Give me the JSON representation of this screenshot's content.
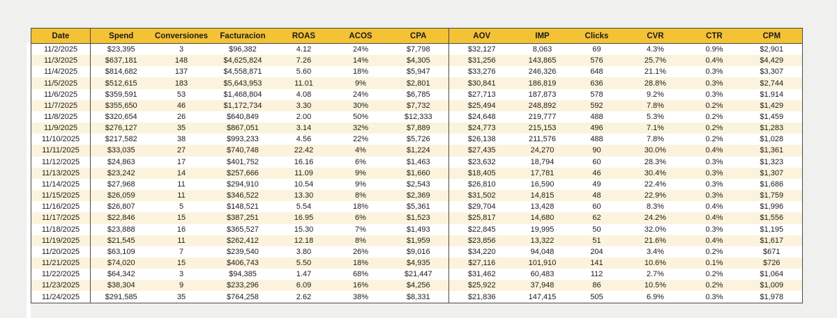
{
  "page": {
    "background_color": "#f0f0ee"
  },
  "table": {
    "header_bg_color": "#f3c235",
    "stripe_bg_color": "#fcf3dc",
    "border_color": "#4a4a4a",
    "columns": [
      "Date",
      "Spend",
      "Conversiones",
      "Facturacion",
      "ROAS",
      "ACOS",
      "CPA",
      "AOV",
      "IMP",
      "Clicks",
      "CVR",
      "CTR",
      "CPM"
    ],
    "rows": [
      [
        "11/2/2025",
        "$23,395",
        "3",
        "$96,382",
        "4.12",
        "24%",
        "$7,798",
        "$32,127",
        "8,063",
        "69",
        "4.3%",
        "0.9%",
        "$2,901"
      ],
      [
        "11/3/2025",
        "$637,181",
        "148",
        "$4,625,824",
        "7.26",
        "14%",
        "$4,305",
        "$31,256",
        "143,865",
        "576",
        "25.7%",
        "0.4%",
        "$4,429"
      ],
      [
        "11/4/2025",
        "$814,682",
        "137",
        "$4,558,871",
        "5.60",
        "18%",
        "$5,947",
        "$33,276",
        "246,326",
        "648",
        "21.1%",
        "0.3%",
        "$3,307"
      ],
      [
        "11/5/2025",
        "$512,615",
        "183",
        "$5,643,953",
        "11.01",
        "9%",
        "$2,801",
        "$30,841",
        "186,819",
        "636",
        "28.8%",
        "0.3%",
        "$2,744"
      ],
      [
        "11/6/2025",
        "$359,591",
        "53",
        "$1,468,804",
        "4.08",
        "24%",
        "$6,785",
        "$27,713",
        "187,873",
        "578",
        "9.2%",
        "0.3%",
        "$1,914"
      ],
      [
        "11/7/2025",
        "$355,650",
        "46",
        "$1,172,734",
        "3.30",
        "30%",
        "$7,732",
        "$25,494",
        "248,892",
        "592",
        "7.8%",
        "0.2%",
        "$1,429"
      ],
      [
        "11/8/2025",
        "$320,654",
        "26",
        "$640,849",
        "2.00",
        "50%",
        "$12,333",
        "$24,648",
        "219,777",
        "488",
        "5.3%",
        "0.2%",
        "$1,459"
      ],
      [
        "11/9/2025",
        "$276,127",
        "35",
        "$867,051",
        "3.14",
        "32%",
        "$7,889",
        "$24,773",
        "215,153",
        "496",
        "7.1%",
        "0.2%",
        "$1,283"
      ],
      [
        "11/10/2025",
        "$217,582",
        "38",
        "$993,233",
        "4.56",
        "22%",
        "$5,726",
        "$26,138",
        "211,576",
        "488",
        "7.8%",
        "0.2%",
        "$1,028"
      ],
      [
        "11/11/2025",
        "$33,035",
        "27",
        "$740,748",
        "22.42",
        "4%",
        "$1,224",
        "$27,435",
        "24,270",
        "90",
        "30.0%",
        "0.4%",
        "$1,361"
      ],
      [
        "11/12/2025",
        "$24,863",
        "17",
        "$401,752",
        "16.16",
        "6%",
        "$1,463",
        "$23,632",
        "18,794",
        "60",
        "28.3%",
        "0.3%",
        "$1,323"
      ],
      [
        "11/13/2025",
        "$23,242",
        "14",
        "$257,666",
        "11.09",
        "9%",
        "$1,660",
        "$18,405",
        "17,781",
        "46",
        "30.4%",
        "0.3%",
        "$1,307"
      ],
      [
        "11/14/2025",
        "$27,968",
        "11",
        "$294,910",
        "10.54",
        "9%",
        "$2,543",
        "$26,810",
        "16,590",
        "49",
        "22.4%",
        "0.3%",
        "$1,686"
      ],
      [
        "11/15/2025",
        "$26,059",
        "11",
        "$346,522",
        "13.30",
        "8%",
        "$2,369",
        "$31,502",
        "14,815",
        "48",
        "22.9%",
        "0.3%",
        "$1,759"
      ],
      [
        "11/16/2025",
        "$26,807",
        "5",
        "$148,521",
        "5.54",
        "18%",
        "$5,361",
        "$29,704",
        "13,428",
        "60",
        "8.3%",
        "0.4%",
        "$1,996"
      ],
      [
        "11/17/2025",
        "$22,846",
        "15",
        "$387,251",
        "16.95",
        "6%",
        "$1,523",
        "$25,817",
        "14,680",
        "62",
        "24.2%",
        "0.4%",
        "$1,556"
      ],
      [
        "11/18/2025",
        "$23,888",
        "16",
        "$365,527",
        "15.30",
        "7%",
        "$1,493",
        "$22,845",
        "19,995",
        "50",
        "32.0%",
        "0.3%",
        "$1,195"
      ],
      [
        "11/19/2025",
        "$21,545",
        "11",
        "$262,412",
        "12.18",
        "8%",
        "$1,959",
        "$23,856",
        "13,322",
        "51",
        "21.6%",
        "0.4%",
        "$1,617"
      ],
      [
        "11/20/2025",
        "$63,109",
        "7",
        "$239,540",
        "3.80",
        "26%",
        "$9,016",
        "$34,220",
        "94,048",
        "204",
        "3.4%",
        "0.2%",
        "$671"
      ],
      [
        "11/21/2025",
        "$74,020",
        "15",
        "$406,743",
        "5.50",
        "18%",
        "$4,935",
        "$27,116",
        "101,910",
        "141",
        "10.6%",
        "0.1%",
        "$726"
      ],
      [
        "11/22/2025",
        "$64,342",
        "3",
        "$94,385",
        "1.47",
        "68%",
        "$21,447",
        "$31,462",
        "60,483",
        "112",
        "2.7%",
        "0.2%",
        "$1,064"
      ],
      [
        "11/23/2025",
        "$38,304",
        "9",
        "$233,296",
        "6.09",
        "16%",
        "$4,256",
        "$25,922",
        "37,948",
        "86",
        "10.5%",
        "0.2%",
        "$1,009"
      ],
      [
        "11/24/2025",
        "$291,585",
        "35",
        "$764,258",
        "2.62",
        "38%",
        "$8,331",
        "$21,836",
        "147,415",
        "505",
        "6.9%",
        "0.3%",
        "$1,978"
      ]
    ]
  }
}
